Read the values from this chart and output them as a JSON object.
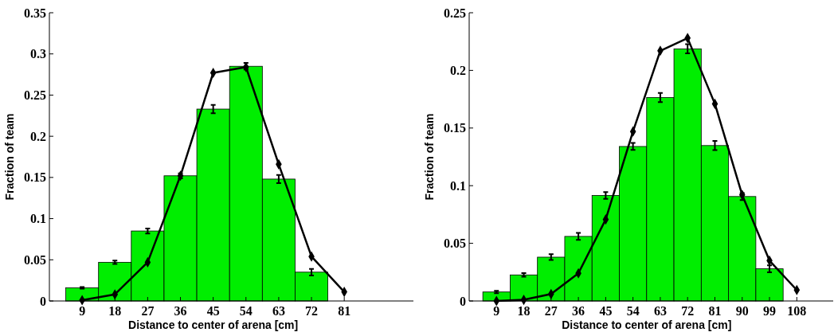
{
  "chart_data": [
    {
      "type": "histogram",
      "xlabel": "Distance to center of arena [cm]",
      "ylabel": "Fraction of team",
      "bins": [
        4.5,
        13.5,
        22.5,
        31.5,
        40.5,
        49.5,
        58.5,
        67.5,
        76.5,
        85.5
      ],
      "xlim": [
        0,
        100
      ],
      "xticks": [
        9,
        18,
        27,
        36,
        45,
        54,
        63,
        72,
        81
      ],
      "ylim": [
        0,
        0.35
      ],
      "yticks": [
        0,
        0.05,
        0.1,
        0.15,
        0.2,
        0.25,
        0.3,
        0.35
      ],
      "grid": false,
      "series": [
        {
          "color": "#00ee00",
          "values": [
            0.016,
            0.047,
            0.085,
            0.152,
            0.233,
            0.285,
            0.148,
            0.035,
            0
          ],
          "errors": [
            0.001,
            0.002,
            0.003,
            0.003,
            0.005,
            0.004,
            0.005,
            0.004,
            null
          ]
        },
        {
          "type": "line",
          "color": "#000000",
          "marker": "diamond",
          "line_style": "solid",
          "x": [
            9,
            18,
            27,
            36,
            45,
            54,
            63,
            72,
            81
          ],
          "values": [
            0.001,
            0.008,
            0.047,
            0.152,
            0.277,
            0.284,
            0.166,
            0.054,
            0.011
          ]
        }
      ]
    },
    {
      "type": "histogram",
      "xlabel": "Distance to center of arena [cm]",
      "ylabel": "Fraction of team",
      "bins": [
        4.5,
        13.5,
        22.5,
        31.5,
        40.5,
        49.5,
        58.5,
        67.5,
        76.5,
        85.5,
        94.5,
        103.5,
        112.5
      ],
      "xlim": [
        0,
        120
      ],
      "xticks": [
        9,
        18,
        27,
        36,
        45,
        54,
        63,
        72,
        81,
        90,
        99,
        108
      ],
      "ylim": [
        0,
        0.25
      ],
      "yticks": [
        0,
        0.05,
        0.1,
        0.15,
        0.2,
        0.25
      ],
      "grid": false,
      "series": [
        {
          "color": "#00ee00",
          "values": [
            0.0078,
            0.0226,
            0.038,
            0.056,
            0.0915,
            0.134,
            0.1765,
            0.2187,
            0.1348,
            0.0906,
            0.0279,
            0
          ],
          "errors": [
            0.001,
            0.0015,
            0.0025,
            0.003,
            0.003,
            0.003,
            0.004,
            0.004,
            0.004,
            0.003,
            0.003,
            null
          ]
        },
        {
          "type": "line",
          "color": "#000000",
          "marker": "diamond",
          "line_style": "solid",
          "x": [
            9,
            18,
            27,
            36,
            45,
            54,
            63,
            72,
            81,
            90,
            99,
            108
          ],
          "values": [
            0,
            0.001,
            0.006,
            0.024,
            0.0707,
            0.147,
            0.217,
            0.228,
            0.171,
            0.092,
            0.035,
            0.0095
          ]
        }
      ]
    }
  ]
}
